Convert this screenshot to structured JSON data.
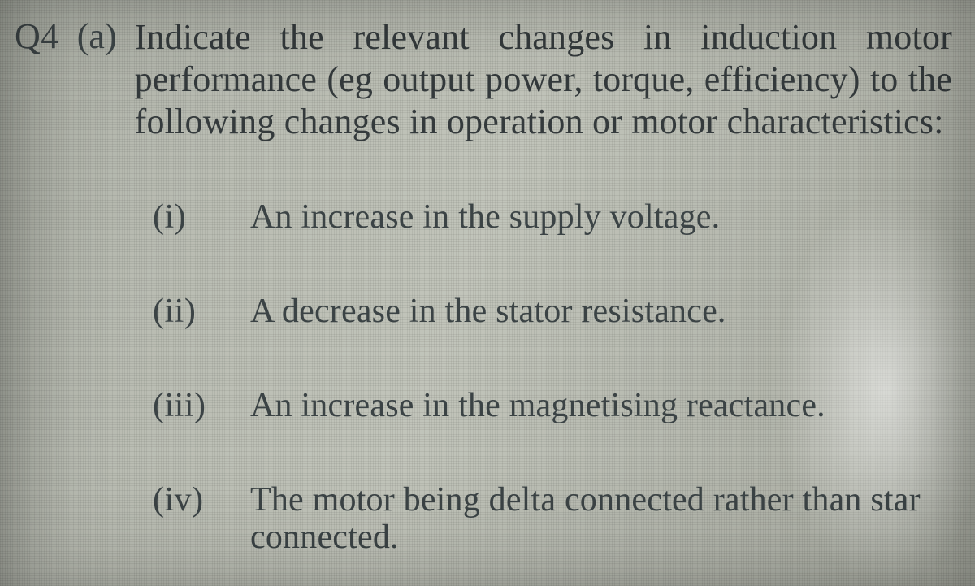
{
  "colors": {
    "text": "#343a3c",
    "text_dim": "#3d4547",
    "bg_base": "#b9bcb2"
  },
  "typography": {
    "family": "Times New Roman, serif",
    "stem_fontsize_pt": 33,
    "item_fontsize_pt": 32
  },
  "question": {
    "number": "Q4",
    "part": "(a)",
    "stem": "Indicate the relevant changes in induction motor performance (eg output power, torque, efficiency) to the following changes in operation or motor characteristics:"
  },
  "items": [
    {
      "label": "(i)",
      "text": "An increase in the supply voltage."
    },
    {
      "label": "(ii)",
      "text": "A decrease in the stator resistance."
    },
    {
      "label": "(iii)",
      "text": "An increase in the magnetising reactance."
    },
    {
      "label": "(iv)",
      "text": "The motor being delta connected rather than star connected."
    }
  ]
}
